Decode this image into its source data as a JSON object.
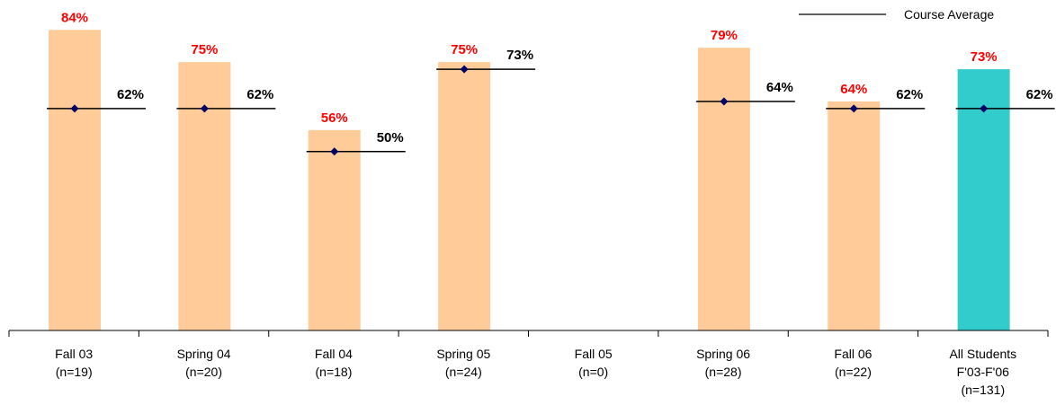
{
  "chart_data": {
    "type": "bar",
    "title": "",
    "xlabel": "",
    "ylabel": "",
    "ylim": [
      0,
      100
    ],
    "grid": false,
    "legend": {
      "position": "top-right",
      "entries": [
        "Course Average"
      ]
    },
    "categories": [
      [
        "Fall 03",
        "(n=19)"
      ],
      [
        "Spring 04",
        "(n=20)"
      ],
      [
        "Fall 04",
        "(n=18)"
      ],
      [
        "Spring 05",
        "(n=24)"
      ],
      [
        "Fall 05",
        "(n=0)"
      ],
      [
        "Spring 06",
        "(n=28)"
      ],
      [
        "Fall 06",
        "(n=22)"
      ],
      [
        "All Students",
        "F'03-F'06",
        "(n=131)"
      ]
    ],
    "series": [
      {
        "kind": "bar",
        "values": [
          84,
          75,
          56,
          75,
          null,
          79,
          64,
          73
        ],
        "labels": [
          "84%",
          "75%",
          "56%",
          "75%",
          "",
          "79%",
          "64%",
          "73%"
        ],
        "colors": [
          "#FFCC99",
          "#FFCC99",
          "#FFCC99",
          "#FFCC99",
          "#FFCC99",
          "#FFCC99",
          "#FFCC99",
          "#33CCCC"
        ]
      },
      {
        "kind": "marker-line",
        "name": "Course Average",
        "values": [
          62,
          62,
          50,
          73,
          null,
          64,
          62,
          62
        ],
        "labels": [
          "62%",
          "62%",
          "50%",
          "73%",
          "",
          "64%",
          "62%",
          "62%"
        ]
      }
    ],
    "colors": {
      "bar_label": "#FF0000",
      "avg_label": "#000000",
      "marker": "#000066",
      "line": "#000000",
      "axis": "#000000"
    }
  }
}
